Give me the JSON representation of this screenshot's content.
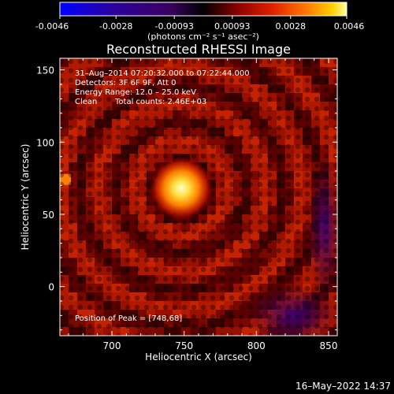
{
  "chart_data": {
    "type": "heatmap",
    "title": "Reconstructed RHESSI Image",
    "xlabel": "Heliocentric X (arcsec)",
    "ylabel": "Heliocentric Y (arcsec)",
    "xlim": [
      664,
      856
    ],
    "ylim": [
      -34,
      158
    ],
    "x_ticks": [
      "700",
      "750",
      "800",
      "850"
    ],
    "y_ticks": [
      "150",
      "100",
      "50",
      "0"
    ],
    "colorbar": {
      "range": [
        -0.0046,
        0.0046
      ],
      "tick_labels": [
        "-0.0046",
        "-0.0028",
        "-0.00093",
        "0.00093",
        "0.0028",
        "0.0046"
      ],
      "label": "(photons cm⁻² s⁻¹ asec⁻²)",
      "colormap_stops": [
        "#0000ff",
        "#2a00a0",
        "#3c0060",
        "#000000",
        "#8a0000",
        "#e02000",
        "#ff7a00",
        "#ffd000",
        "#ffffa0"
      ]
    },
    "annotations": {
      "time_range": "31–Aug–2014 07:20:32.000 to 07:22:44.000",
      "detectors": "Detectors: 3F 6F 9F, Att 0",
      "energy": "Energy Range: 12.0 – 25.0 keV",
      "clean_label": "Clean",
      "counts": "Total counts: 2.46E+03",
      "peak": "Position of Peak = [748,68]"
    },
    "peak": {
      "x": 748,
      "y": 68
    }
  },
  "footer": {
    "timestamp": "16–May–2022 14:37"
  }
}
